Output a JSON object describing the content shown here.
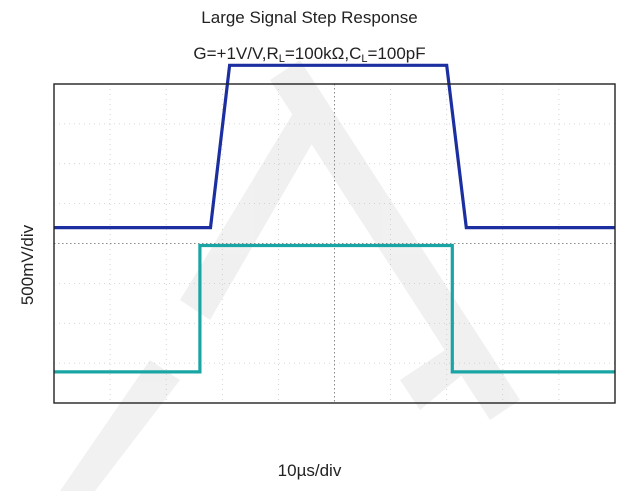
{
  "chart_data": {
    "type": "line",
    "title": "Large Signal Step Response",
    "subtitle": {
      "prefix": "G=+1V/V,R",
      "rl_sub": "L",
      "mid": "=100kΩ,C",
      "cl_sub": "L",
      "suffix": "=100pF"
    },
    "xlabel": "10µs/div",
    "ylabel": "500mV/div",
    "x_divisions": 10,
    "y_divisions": 8,
    "xlim": [
      0,
      10
    ],
    "ylim": [
      -4,
      4
    ],
    "grid": true,
    "series": [
      {
        "color": "#1c2fa0",
        "points": [
          [
            0,
            0.4
          ],
          [
            2.79,
            0.4
          ],
          [
            3.13,
            4.47
          ],
          [
            7.0,
            4.47
          ],
          [
            7.35,
            0.4
          ],
          [
            10,
            0.4
          ]
        ]
      },
      {
        "color": "#1aa5a5",
        "points": [
          [
            0,
            -3.22
          ],
          [
            2.6,
            -3.22
          ],
          [
            2.6,
            -0.05
          ],
          [
            7.1,
            -0.05
          ],
          [
            7.1,
            -3.22
          ],
          [
            10,
            -3.22
          ]
        ]
      }
    ]
  }
}
